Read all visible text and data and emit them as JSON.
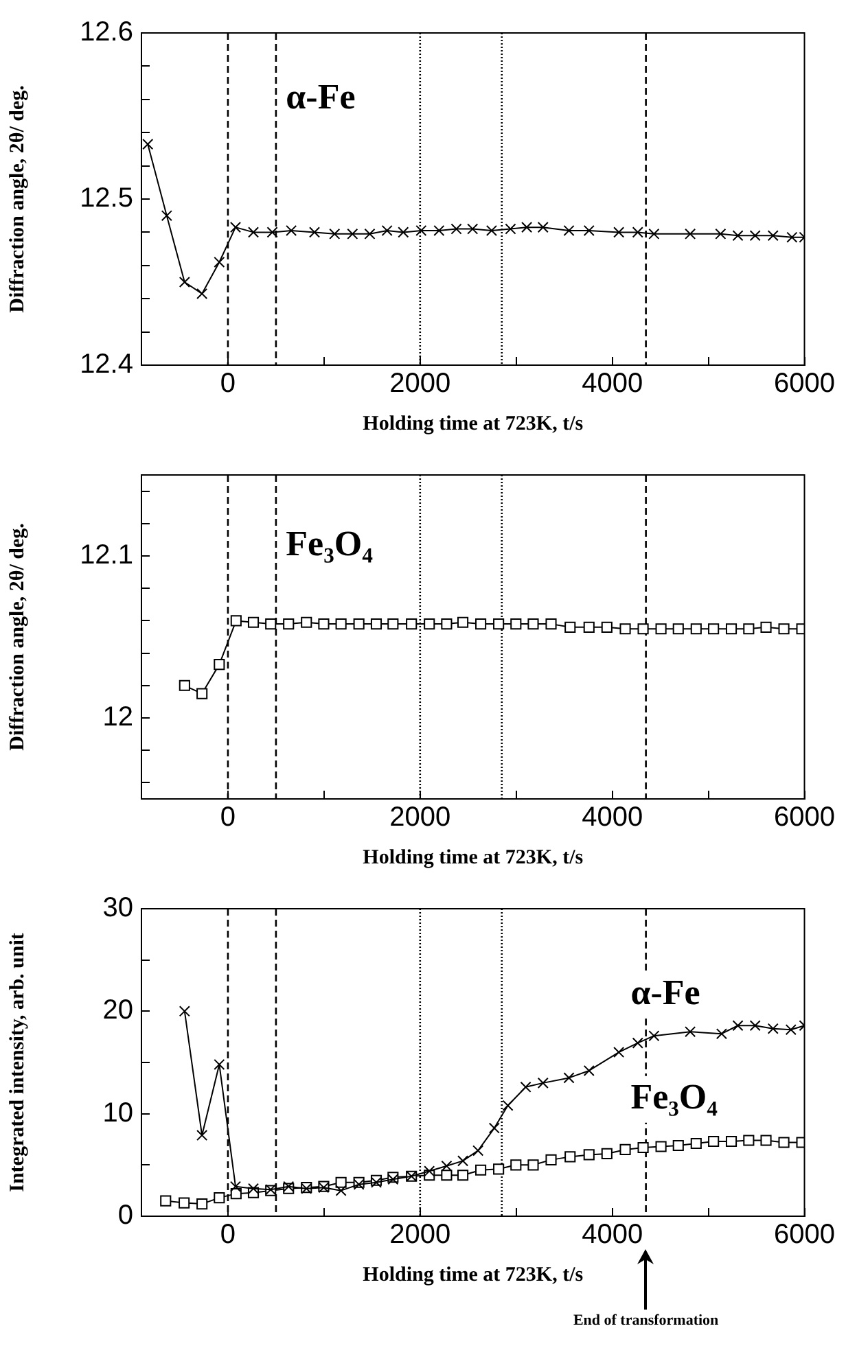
{
  "chart_data": [
    {
      "type": "line",
      "xlabel": "Holding time at 723K, t/s",
      "ylabel": "Diffraction angle, 2θ/ deg.",
      "xlim": [
        -900,
        6000
      ],
      "xticks": [
        0,
        {
          "value": 1000,
          "label": null
        },
        2000,
        {
          "value": 3000,
          "label": null
        },
        4000,
        {
          "value": 5000,
          "label": null
        },
        6000
      ],
      "ylim": [
        12.4,
        12.6
      ],
      "yticks": [
        12.4,
        {
          "value": 12.42,
          "label": null
        },
        {
          "value": 12.44,
          "label": null
        },
        {
          "value": 12.46,
          "label": null
        },
        {
          "value": 12.48,
          "label": null
        },
        12.5,
        {
          "value": 12.52,
          "label": null
        },
        {
          "value": 12.54,
          "label": null
        },
        {
          "value": 12.56,
          "label": null
        },
        {
          "value": 12.58,
          "label": null
        },
        12.6
      ],
      "grid": false,
      "line_style": "solid",
      "series": [
        {
          "name": "α-Fe",
          "color": "#000000",
          "marker": "cross",
          "x": [
            -834,
            -637,
            -451,
            -270,
            -90,
            79,
            265,
            462,
            659,
            901,
            1110,
            1296,
            1476,
            1656,
            1825,
            2011,
            2197,
            2377,
            2546,
            2744,
            2941,
            3110,
            3279,
            3549,
            3758,
            4068,
            4265,
            4434,
            4811,
            5127,
            5307,
            5487,
            5673,
            5870,
            6000
          ],
          "values": [
            12.533,
            12.49,
            12.45,
            12.443,
            12.462,
            12.483,
            12.48,
            12.48,
            12.481,
            12.48,
            12.479,
            12.479,
            12.479,
            12.481,
            12.48,
            12.481,
            12.481,
            12.482,
            12.482,
            12.481,
            12.482,
            12.483,
            12.483,
            12.481,
            12.481,
            12.48,
            12.48,
            12.479,
            12.479,
            12.479,
            12.478,
            12.478,
            12.478,
            12.477,
            12.477
          ]
        }
      ],
      "ref_lines": [
        {
          "axis": "x",
          "value": 0,
          "line_style": "dashed"
        },
        {
          "axis": "x",
          "value": 500,
          "line_style": "dashed"
        },
        {
          "axis": "x",
          "value": 2000,
          "line_style": "dotted"
        },
        {
          "axis": "x",
          "value": 2850,
          "line_style": "dotted"
        },
        {
          "axis": "x",
          "value": 4350,
          "line_style": "dashed"
        }
      ]
    },
    {
      "type": "line",
      "xlabel": "Holding time at 723K, t/s",
      "ylabel": "Diffraction angle, 2θ/ deg.",
      "xlim": [
        -900,
        6000
      ],
      "xticks": [
        0,
        {
          "value": 1000,
          "label": null
        },
        2000,
        {
          "value": 3000,
          "label": null
        },
        4000,
        {
          "value": 5000,
          "label": null
        },
        6000
      ],
      "ylim": [
        11.95,
        12.15
      ],
      "yticks": [
        {
          "value": 11.96,
          "label": null
        },
        {
          "value": 11.98,
          "label": null
        },
        12,
        {
          "value": 12.02,
          "label": null
        },
        {
          "value": 12.04,
          "label": null
        },
        {
          "value": 12.06,
          "label": null
        },
        {
          "value": 12.08,
          "label": null
        },
        12.1,
        {
          "value": 12.12,
          "label": null
        },
        {
          "value": 12.14,
          "label": null
        }
      ],
      "grid": false,
      "line_style": "solid",
      "series": [
        {
          "name": "Fe₃O₄",
          "color": "#000000",
          "marker": "square",
          "x": [
            -451,
            -270,
            -90,
            85,
            265,
            445,
            631,
            817,
            997,
            1177,
            1363,
            1544,
            1718,
            1910,
            2096,
            2276,
            2445,
            2631,
            2817,
            2997,
            3177,
            3363,
            3561,
            3758,
            3944,
            4135,
            4321,
            4507,
            4687,
            4873,
            5054,
            5239,
            5420,
            5600,
            5786,
            5972
          ],
          "values": [
            12.02,
            12.015,
            12.033,
            12.06,
            12.059,
            12.058,
            12.058,
            12.059,
            12.058,
            12.058,
            12.058,
            12.058,
            12.058,
            12.058,
            12.058,
            12.058,
            12.059,
            12.058,
            12.058,
            12.058,
            12.058,
            12.058,
            12.056,
            12.056,
            12.056,
            12.055,
            12.055,
            12.055,
            12.055,
            12.055,
            12.055,
            12.055,
            12.055,
            12.056,
            12.055,
            12.055
          ]
        }
      ],
      "ref_lines": [
        {
          "axis": "x",
          "value": 0,
          "line_style": "dashed"
        },
        {
          "axis": "x",
          "value": 500,
          "line_style": "dashed"
        },
        {
          "axis": "x",
          "value": 2000,
          "line_style": "dotted"
        },
        {
          "axis": "x",
          "value": 2850,
          "line_style": "dotted"
        },
        {
          "axis": "x",
          "value": 4350,
          "line_style": "dashed"
        }
      ]
    },
    {
      "type": "line",
      "xlabel": "Holding time at 723K, t/s",
      "ylabel": "Integrated intensity, arb. unit",
      "xlim": [
        -900,
        6000
      ],
      "xticks": [
        0,
        {
          "value": 1000,
          "label": null
        },
        2000,
        {
          "value": 3000,
          "label": null
        },
        4000,
        {
          "value": 5000,
          "label": null
        },
        6000
      ],
      "ylim": [
        0,
        30
      ],
      "yticks": [
        0,
        {
          "value": 5,
          "label": null
        },
        10,
        {
          "value": 15,
          "label": null
        },
        20,
        {
          "value": 25,
          "label": null
        },
        30
      ],
      "grid": false,
      "line_style": "solid",
      "series": [
        {
          "name": "α-Fe",
          "color": "#000000",
          "marker": "cross",
          "x": [
            -451,
            -270,
            -90,
            79,
            265,
            445,
            631,
            817,
            997,
            1177,
            1363,
            1544,
            1718,
            1910,
            2096,
            2276,
            2445,
            2603,
            2772,
            2913,
            3099,
            3279,
            3549,
            3758,
            4068,
            4265,
            4434,
            4811,
            5138,
            5307,
            5487,
            5673,
            5859,
            6000
          ],
          "values": [
            20,
            7.9,
            14.8,
            2.9,
            2.7,
            2.6,
            2.9,
            2.7,
            2.8,
            2.5,
            3.1,
            3.3,
            3.6,
            3.9,
            4.4,
            4.9,
            5.4,
            6.4,
            8.6,
            10.8,
            12.6,
            13,
            13.5,
            14.2,
            16,
            16.9,
            17.6,
            18,
            17.8,
            18.6,
            18.6,
            18.3,
            18.2,
            18.6
          ]
        },
        {
          "name": "Fe₃O₄",
          "color": "#000000",
          "marker": "square",
          "x": [
            -648,
            -456,
            -270,
            -90,
            85,
            265,
            445,
            631,
            817,
            997,
            1177,
            1363,
            1544,
            1718,
            1910,
            2096,
            2276,
            2445,
            2631,
            2817,
            2997,
            3177,
            3363,
            3561,
            3758,
            3944,
            4135,
            4321,
            4507,
            4687,
            4873,
            5054,
            5239,
            5420,
            5600,
            5786,
            5972
          ],
          "values": [
            1.5,
            1.3,
            1.2,
            1.8,
            2.2,
            2.3,
            2.5,
            2.7,
            2.8,
            2.9,
            3.3,
            3.3,
            3.5,
            3.8,
            3.9,
            4,
            4,
            4,
            4.5,
            4.6,
            5,
            5,
            5.5,
            5.8,
            6,
            6.1,
            6.5,
            6.7,
            6.8,
            6.9,
            7.1,
            7.3,
            7.3,
            7.4,
            7.4,
            7.2,
            7.2
          ]
        }
      ],
      "ref_lines": [
        {
          "axis": "x",
          "value": 0,
          "line_style": "dashed"
        },
        {
          "axis": "x",
          "value": 500,
          "line_style": "dashed"
        },
        {
          "axis": "x",
          "value": 2000,
          "line_style": "dotted"
        },
        {
          "axis": "x",
          "value": 2850,
          "line_style": "dotted"
        },
        {
          "axis": "x",
          "value": 4350,
          "line_style": "dashed"
        }
      ],
      "annotations": [
        "End of transformation"
      ]
    }
  ]
}
